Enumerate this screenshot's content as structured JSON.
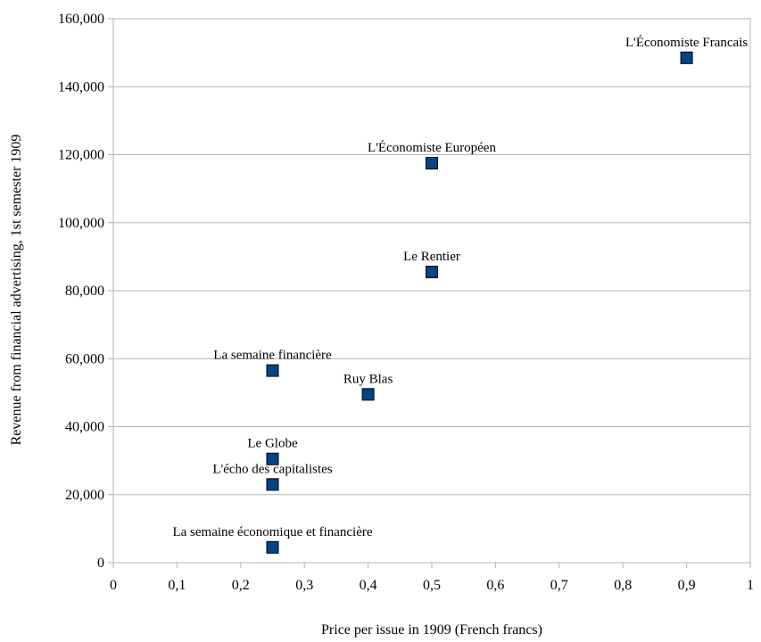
{
  "chart_data": {
    "type": "scatter",
    "title": "",
    "xlabel": "Price per issue in 1909 (French francs)",
    "ylabel": "Revenue from financial advertising, 1st semester 1909",
    "xlim": [
      0,
      1
    ],
    "ylim": [
      0,
      160000
    ],
    "x_ticks": [
      "0",
      "0,1",
      "0,2",
      "0,3",
      "0,4",
      "0,5",
      "0,6",
      "0,7",
      "0,8",
      "0,9",
      "1"
    ],
    "y_ticks": [
      "0",
      "20,000",
      "40,000",
      "60,000",
      "80,000",
      "100,000",
      "120,000",
      "140,000",
      "160,000"
    ],
    "grid": "horizontal",
    "marker": "square",
    "colors": {
      "marker_fill": "#004586",
      "marker_stroke": "#000000",
      "grid": "#b3b3b3",
      "axis": "#b3b3b3"
    },
    "points": [
      {
        "label": "L'Économiste Francais",
        "x": 0.9,
        "y": 148500
      },
      {
        "label": "L'Économiste Européen",
        "x": 0.5,
        "y": 117500
      },
      {
        "label": "Le Rentier",
        "x": 0.5,
        "y": 85500
      },
      {
        "label": "La semaine financière",
        "x": 0.25,
        "y": 56500
      },
      {
        "label": "Ruy Blas",
        "x": 0.4,
        "y": 49500
      },
      {
        "label": "Le Globe",
        "x": 0.25,
        "y": 30500
      },
      {
        "label": "L'écho des capitalistes",
        "x": 0.25,
        "y": 23000
      },
      {
        "label": "La semaine économique et financière",
        "x": 0.25,
        "y": 4500
      }
    ]
  }
}
